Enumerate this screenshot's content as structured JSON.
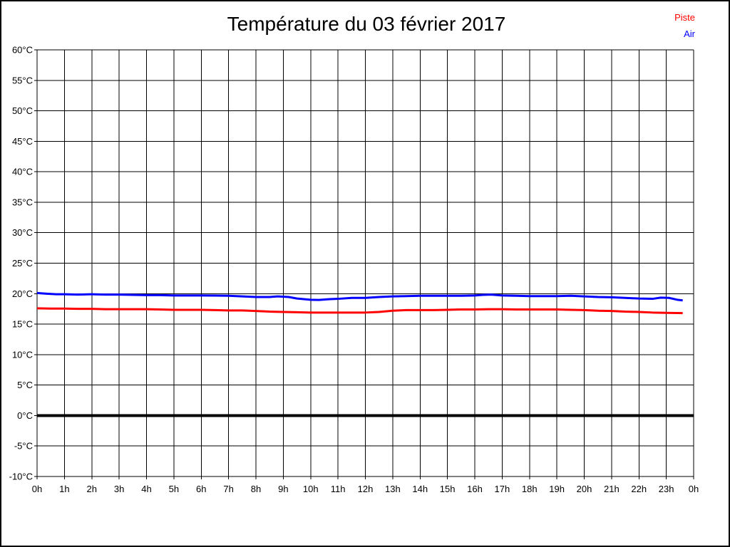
{
  "title": "Température du 03 février 2017",
  "legend": [
    {
      "label": "Piste",
      "color": "#ff0000"
    },
    {
      "label": "Air",
      "color": "#0000ff"
    }
  ],
  "colors": {
    "grid": "#000000",
    "background": "#ffffff",
    "frame": "#000000",
    "zero_line": "#000000",
    "piste_line": "#ff0000",
    "air_line": "#0000ff"
  },
  "chart_data": {
    "type": "line",
    "title": "Température du 03 février 2017",
    "xlabel": "",
    "ylabel": "",
    "xlim": [
      0,
      24
    ],
    "ylim": [
      -10,
      60
    ],
    "y_tick_step": 5,
    "grid": true,
    "legend_position": "top-right",
    "y_ticks": [
      "60°C",
      "55°C",
      "50°C",
      "45°C",
      "40°C",
      "35°C",
      "30°C",
      "25°C",
      "20°C",
      "15°C",
      "10°C",
      "5°C",
      "0°C",
      "-5°C",
      "-10°C"
    ],
    "x_ticks": [
      "0h",
      "1h",
      "2h",
      "3h",
      "4h",
      "5h",
      "6h",
      "7h",
      "8h",
      "9h",
      "10h",
      "11h",
      "12h",
      "13h",
      "14h",
      "15h",
      "16h",
      "17h",
      "18h",
      "19h",
      "20h",
      "21h",
      "22h",
      "23h",
      "0h"
    ],
    "zero_line": {
      "value": 0,
      "width": 4
    },
    "series": [
      {
        "name": "Piste",
        "color": "#ff0000",
        "width": 3,
        "points": [
          [
            0,
            17.6
          ],
          [
            0.5,
            17.55
          ],
          [
            1,
            17.55
          ],
          [
            1.5,
            17.5
          ],
          [
            2,
            17.5
          ],
          [
            2.5,
            17.45
          ],
          [
            3,
            17.45
          ],
          [
            3.5,
            17.45
          ],
          [
            4,
            17.45
          ],
          [
            4.5,
            17.4
          ],
          [
            5,
            17.35
          ],
          [
            5.5,
            17.35
          ],
          [
            6,
            17.35
          ],
          [
            6.5,
            17.3
          ],
          [
            7,
            17.25
          ],
          [
            7.5,
            17.25
          ],
          [
            8,
            17.15
          ],
          [
            8.5,
            17.05
          ],
          [
            9,
            17.0
          ],
          [
            9.5,
            16.95
          ],
          [
            10,
            16.9
          ],
          [
            10.5,
            16.9
          ],
          [
            11,
            16.9
          ],
          [
            11.5,
            16.9
          ],
          [
            12,
            16.9
          ],
          [
            12.5,
            17.0
          ],
          [
            13,
            17.2
          ],
          [
            13.5,
            17.3
          ],
          [
            14,
            17.3
          ],
          [
            14.5,
            17.3
          ],
          [
            15,
            17.35
          ],
          [
            15.5,
            17.4
          ],
          [
            16,
            17.4
          ],
          [
            16.5,
            17.45
          ],
          [
            17,
            17.45
          ],
          [
            17.5,
            17.4
          ],
          [
            18,
            17.4
          ],
          [
            18.5,
            17.4
          ],
          [
            19,
            17.4
          ],
          [
            19.5,
            17.35
          ],
          [
            20,
            17.3
          ],
          [
            20.5,
            17.2
          ],
          [
            21,
            17.15
          ],
          [
            21.5,
            17.05
          ],
          [
            22,
            17.0
          ],
          [
            22.5,
            16.9
          ],
          [
            23,
            16.85
          ],
          [
            23.6,
            16.8
          ]
        ]
      },
      {
        "name": "Air",
        "color": "#0000ff",
        "width": 3,
        "points": [
          [
            0,
            20.1
          ],
          [
            0.3,
            20.0
          ],
          [
            0.7,
            19.9
          ],
          [
            1,
            19.9
          ],
          [
            1.5,
            19.85
          ],
          [
            2,
            19.9
          ],
          [
            2.5,
            19.85
          ],
          [
            3,
            19.85
          ],
          [
            3.5,
            19.8
          ],
          [
            4,
            19.75
          ],
          [
            4.5,
            19.75
          ],
          [
            5,
            19.7
          ],
          [
            5.5,
            19.7
          ],
          [
            6,
            19.7
          ],
          [
            6.5,
            19.68
          ],
          [
            7,
            19.65
          ],
          [
            7.5,
            19.55
          ],
          [
            8,
            19.45
          ],
          [
            8.5,
            19.45
          ],
          [
            8.8,
            19.55
          ],
          [
            9.2,
            19.45
          ],
          [
            9.5,
            19.2
          ],
          [
            10,
            19.0
          ],
          [
            10.3,
            18.97
          ],
          [
            10.7,
            19.1
          ],
          [
            11,
            19.15
          ],
          [
            11.5,
            19.3
          ],
          [
            12,
            19.3
          ],
          [
            12.5,
            19.45
          ],
          [
            13,
            19.55
          ],
          [
            13.5,
            19.6
          ],
          [
            14,
            19.65
          ],
          [
            14.5,
            19.65
          ],
          [
            15,
            19.65
          ],
          [
            15.5,
            19.65
          ],
          [
            16,
            19.7
          ],
          [
            16.3,
            19.8
          ],
          [
            16.6,
            19.85
          ],
          [
            17,
            19.7
          ],
          [
            17.5,
            19.65
          ],
          [
            18,
            19.6
          ],
          [
            18.5,
            19.6
          ],
          [
            19,
            19.6
          ],
          [
            19.5,
            19.65
          ],
          [
            20,
            19.55
          ],
          [
            20.5,
            19.45
          ],
          [
            21,
            19.4
          ],
          [
            21.5,
            19.3
          ],
          [
            22,
            19.2
          ],
          [
            22.5,
            19.15
          ],
          [
            22.8,
            19.35
          ],
          [
            23.1,
            19.3
          ],
          [
            23.4,
            19.0
          ],
          [
            23.6,
            18.9
          ]
        ]
      }
    ]
  }
}
